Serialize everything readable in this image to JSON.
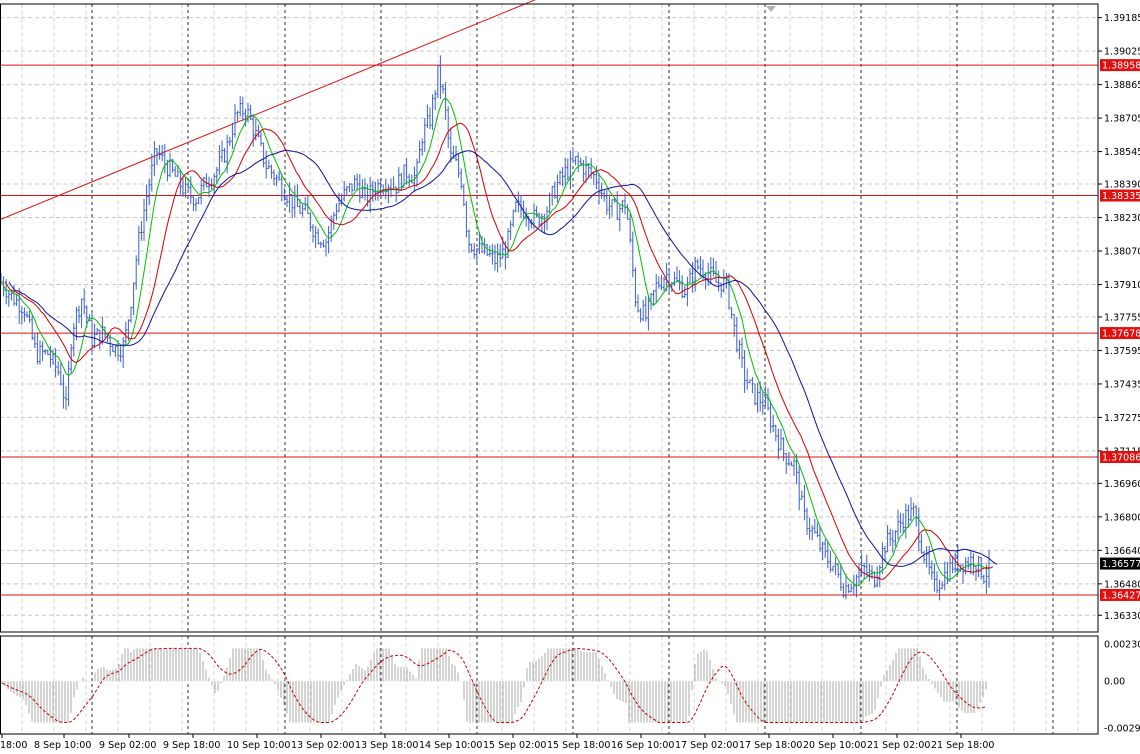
{
  "chart_data": {
    "type": "candlestick",
    "symbol_timeframe": "",
    "price_axis": {
      "min": 1.3625,
      "max": 1.3925,
      "ticks": [
        "1.39185",
        "1.39025",
        "1.38865",
        "1.38705",
        "1.38545",
        "1.38390",
        "1.38230",
        "1.38070",
        "1.37910",
        "1.37755",
        "1.37595",
        "1.37435",
        "1.37275",
        "1.37115",
        "1.36960",
        "1.36800",
        "1.36640",
        "1.36480",
        "1.36330"
      ]
    },
    "time_axis": {
      "labels": [
        "18:00",
        "8 Sep 10:00",
        "9 Sep 02:00",
        "9 Sep 18:00",
        "10 Sep 10:00",
        "13 Sep 02:00",
        "13 Sep 18:00",
        "14 Sep 10:00",
        "15 Sep 02:00",
        "15 Sep 18:00",
        "16 Sep 10:00",
        "17 Sep 02:00",
        "17 Sep 18:00",
        "20 Sep 10:00",
        "21 Sep 02:00",
        "21 Sep 18:00"
      ]
    },
    "current_price": "1.36577",
    "levels": [
      {
        "price": "1.38958",
        "color": "#e01010"
      },
      {
        "price": "1.38335",
        "color": "#e01010"
      },
      {
        "price": "1.37678",
        "color": "#e01010"
      },
      {
        "price": "1.37086",
        "color": "#e01010"
      },
      {
        "price": "1.36427",
        "color": "#e01010"
      }
    ],
    "trendline": {
      "from": [
        "start",
        1.3822
      ],
      "to": [
        "14 Sep 10:00",
        1.3935
      ],
      "color": "#e01010"
    },
    "price_path": [
      [
        0,
        1.3793
      ],
      [
        12,
        1.3785
      ],
      [
        24,
        1.378
      ],
      [
        36,
        1.3758
      ],
      [
        48,
        1.3758
      ],
      [
        60,
        1.3748
      ],
      [
        66,
        1.3732
      ],
      [
        72,
        1.377
      ],
      [
        82,
        1.3785
      ],
      [
        92,
        1.3765
      ],
      [
        104,
        1.3768
      ],
      [
        116,
        1.376
      ],
      [
        124,
        1.3762
      ],
      [
        130,
        1.378
      ],
      [
        138,
        1.381
      ],
      [
        146,
        1.3832
      ],
      [
        156,
        1.3855
      ],
      [
        166,
        1.3848
      ],
      [
        176,
        1.3842
      ],
      [
        186,
        1.3835
      ],
      [
        196,
        1.3832
      ],
      [
        206,
        1.384
      ],
      [
        216,
        1.3845
      ],
      [
        226,
        1.3855
      ],
      [
        236,
        1.3872
      ],
      [
        246,
        1.3875
      ],
      [
        256,
        1.3862
      ],
      [
        266,
        1.3848
      ],
      [
        276,
        1.3842
      ],
      [
        286,
        1.3835
      ],
      [
        296,
        1.3828
      ],
      [
        306,
        1.3825
      ],
      [
        316,
        1.3815
      ],
      [
        326,
        1.3812
      ],
      [
        336,
        1.3828
      ],
      [
        346,
        1.3835
      ],
      [
        356,
        1.384
      ],
      [
        366,
        1.3832
      ],
      [
        376,
        1.3838
      ],
      [
        386,
        1.384
      ],
      [
        396,
        1.3838
      ],
      [
        406,
        1.3845
      ],
      [
        416,
        1.3842
      ],
      [
        422,
        1.3862
      ],
      [
        430,
        1.387
      ],
      [
        438,
        1.3892
      ],
      [
        444,
        1.388
      ],
      [
        450,
        1.3852
      ],
      [
        456,
        1.3848
      ],
      [
        462,
        1.384
      ],
      [
        468,
        1.3812
      ],
      [
        476,
        1.3808
      ],
      [
        486,
        1.3806
      ],
      [
        496,
        1.3802
      ],
      [
        506,
        1.3808
      ],
      [
        516,
        1.3828
      ],
      [
        526,
        1.3826
      ],
      [
        536,
        1.3822
      ],
      [
        546,
        1.3826
      ],
      [
        556,
        1.3838
      ],
      [
        566,
        1.3845
      ],
      [
        576,
        1.385
      ],
      [
        586,
        1.3846
      ],
      [
        596,
        1.3842
      ],
      [
        606,
        1.383
      ],
      [
        616,
        1.3826
      ],
      [
        626,
        1.383
      ],
      [
        636,
        1.3782
      ],
      [
        646,
        1.3775
      ],
      [
        656,
        1.379
      ],
      [
        666,
        1.3796
      ],
      [
        676,
        1.3792
      ],
      [
        686,
        1.3788
      ],
      [
        696,
        1.38
      ],
      [
        706,
        1.3798
      ],
      [
        716,
        1.3792
      ],
      [
        726,
        1.3792
      ],
      [
        734,
        1.377
      ],
      [
        744,
        1.3748
      ],
      [
        754,
        1.3738
      ],
      [
        764,
        1.3735
      ],
      [
        774,
        1.3722
      ],
      [
        784,
        1.371
      ],
      [
        794,
        1.3705
      ],
      [
        804,
        1.368
      ],
      [
        814,
        1.3672
      ],
      [
        824,
        1.3662
      ],
      [
        834,
        1.3656
      ],
      [
        844,
        1.3646
      ],
      [
        854,
        1.365
      ],
      [
        864,
        1.3655
      ],
      [
        874,
        1.365
      ],
      [
        884,
        1.3666
      ],
      [
        894,
        1.3672
      ],
      [
        904,
        1.368
      ],
      [
        914,
        1.3682
      ],
      [
        924,
        1.3662
      ],
      [
        934,
        1.3646
      ],
      [
        944,
        1.3652
      ],
      [
        954,
        1.3658
      ],
      [
        964,
        1.3658
      ],
      [
        974,
        1.366
      ],
      [
        984,
        1.3652
      ],
      [
        990,
        1.3656
      ]
    ],
    "moving_averages": [
      {
        "color": "#00c000",
        "period": 8
      },
      {
        "color": "#d40000",
        "period": 16
      },
      {
        "color": "#1010a0",
        "period": 30
      }
    ],
    "oscillator": {
      "ticks": [
        "0.002308",
        "0.00",
        "-0.00290"
      ],
      "min": -0.0029,
      "max": 0.002308,
      "histogram_color": "#a8a8a8",
      "signal_color": "#c80000"
    }
  }
}
